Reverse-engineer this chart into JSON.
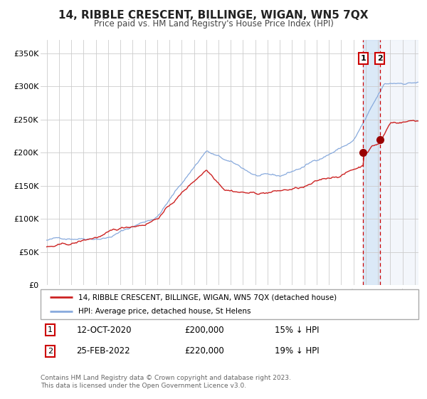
{
  "title": "14, RIBBLE CRESCENT, BILLINGE, WIGAN, WN5 7QX",
  "subtitle": "Price paid vs. HM Land Registry's House Price Index (HPI)",
  "legend_line1": "14, RIBBLE CRESCENT, BILLINGE, WIGAN, WN5 7QX (detached house)",
  "legend_line2": "HPI: Average price, detached house, St Helens",
  "annotation1_date": "12-OCT-2020",
  "annotation1_price": "£200,000",
  "annotation1_hpi": "15% ↓ HPI",
  "annotation2_date": "25-FEB-2022",
  "annotation2_price": "£220,000",
  "annotation2_hpi": "19% ↓ HPI",
  "footer": "Contains HM Land Registry data © Crown copyright and database right 2023.\nThis data is licensed under the Open Government Licence v3.0.",
  "hpi_color": "#88aadd",
  "price_color": "#cc2222",
  "dot_color": "#990000",
  "marker1_x": 2020.79,
  "marker1_y": 200000,
  "marker2_x": 2022.15,
  "marker2_y": 220000,
  "vline1_x": 2020.79,
  "vline2_x": 2022.15,
  "ylim": [
    0,
    370000
  ],
  "xlim": [
    1994.5,
    2025.3
  ],
  "yticks": [
    0,
    50000,
    100000,
    150000,
    200000,
    250000,
    300000,
    350000
  ],
  "ytick_labels": [
    "£0",
    "£50K",
    "£100K",
    "£150K",
    "£200K",
    "£250K",
    "£300K",
    "£350K"
  ],
  "background_color": "#ffffff",
  "grid_color": "#cccccc"
}
